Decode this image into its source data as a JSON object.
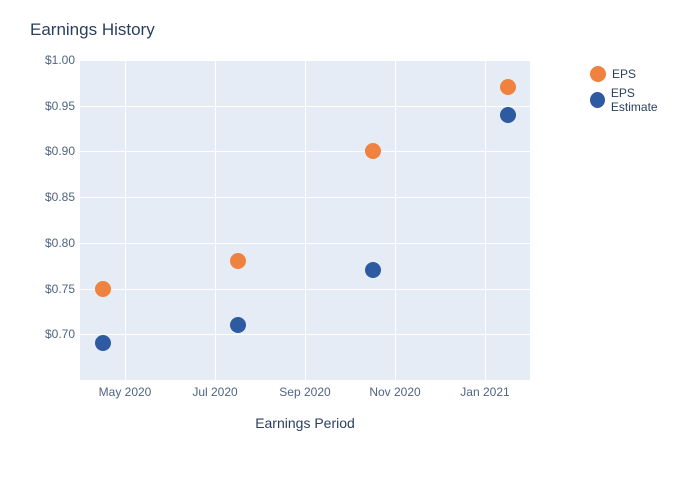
{
  "chart": {
    "title": "Earnings History",
    "xlabel": "Earnings Period",
    "type": "scatter",
    "background_color": "#ffffff",
    "plot_background_color": "#e5ecf6",
    "grid_color": "#ffffff",
    "text_color": "#2a3f5f",
    "tick_color": "#506580",
    "title_fontsize": 17,
    "label_fontsize": 14,
    "tick_fontsize": 12,
    "marker_size": 16,
    "y_axis": {
      "min": 0.65,
      "max": 1.0,
      "ticks": [
        0.7,
        0.75,
        0.8,
        0.85,
        0.9,
        0.95,
        1.0
      ],
      "tick_labels": [
        "$0.70",
        "$0.75",
        "$0.80",
        "$0.85",
        "$0.90",
        "$0.95",
        "$1.00"
      ]
    },
    "x_axis": {
      "min": 0,
      "max": 10,
      "ticks": [
        1,
        3,
        5,
        7,
        9
      ],
      "tick_labels": [
        "May 2020",
        "Jul 2020",
        "Sep 2020",
        "Nov 2020",
        "Jan 2021"
      ]
    },
    "series": [
      {
        "name": "EPS",
        "color": "#ef823e",
        "points": [
          {
            "x": 0.5,
            "y": 0.75
          },
          {
            "x": 3.5,
            "y": 0.78
          },
          {
            "x": 6.5,
            "y": 0.9
          },
          {
            "x": 9.5,
            "y": 0.97
          }
        ]
      },
      {
        "name": "EPS Estimate",
        "color": "#2d5aa0",
        "points": [
          {
            "x": 0.5,
            "y": 0.69
          },
          {
            "x": 3.5,
            "y": 0.71
          },
          {
            "x": 6.5,
            "y": 0.77
          },
          {
            "x": 9.5,
            "y": 0.94
          }
        ]
      }
    ]
  }
}
